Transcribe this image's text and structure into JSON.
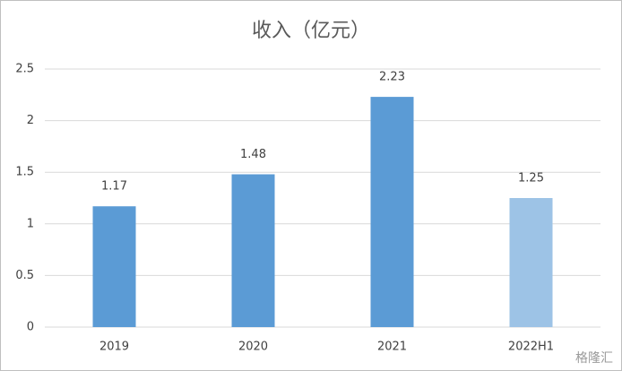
{
  "chart_data": {
    "type": "bar",
    "title": "收入（亿元）",
    "categories": [
      "2019",
      "2020",
      "2021",
      "2022H1"
    ],
    "values": [
      1.17,
      1.48,
      2.23,
      1.25
    ],
    "colors": [
      "#5b9bd5",
      "#5b9bd5",
      "#5b9bd5",
      "#9dc3e6"
    ],
    "ylim": [
      0,
      2.5
    ],
    "yticks": [
      0,
      0.5,
      1,
      1.5,
      2,
      2.5
    ],
    "grid": true,
    "watermark": "格隆汇"
  }
}
